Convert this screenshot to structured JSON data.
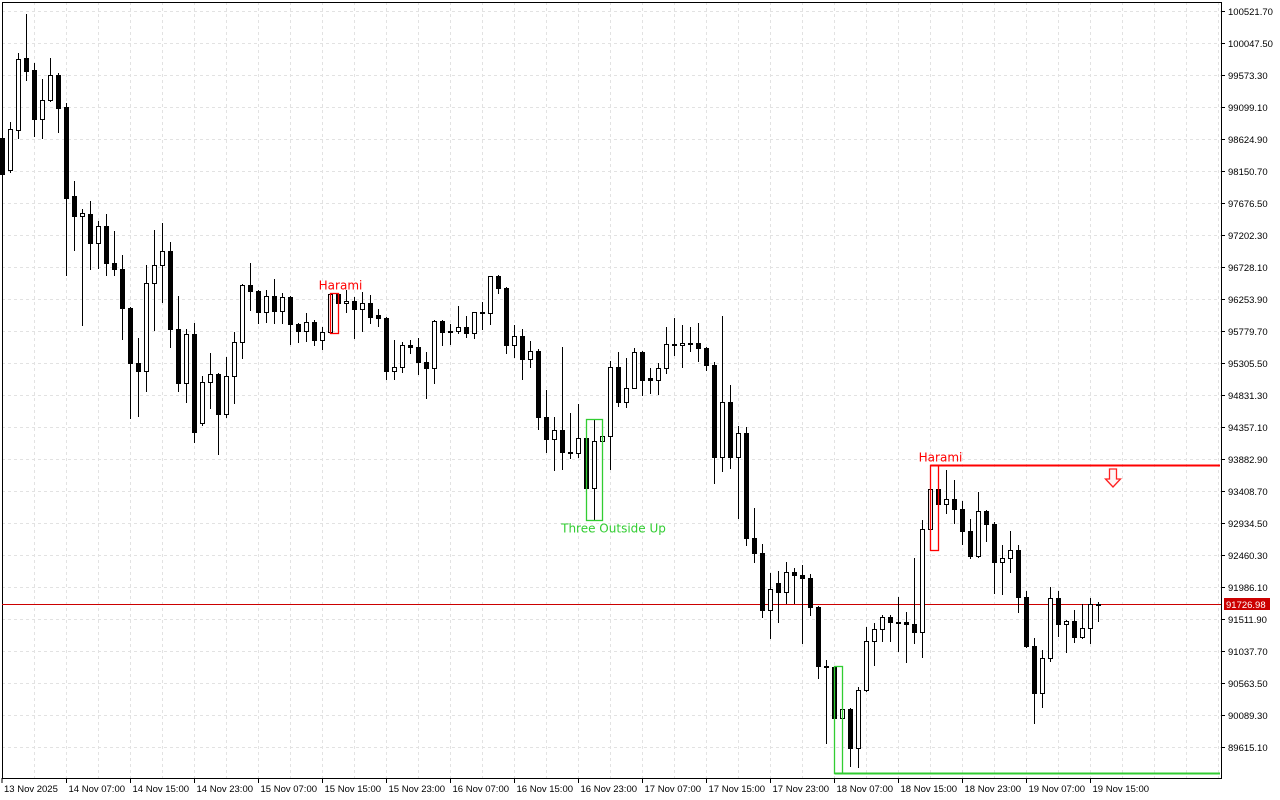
{
  "chart_data": {
    "type": "candlestick",
    "title": "",
    "xlabel": "",
    "ylabel": "",
    "ylim": [
      89155.5,
      100655.1
    ],
    "grid": true,
    "colors": {
      "bull_body": "#ffffff",
      "bear_body": "#000000",
      "outline": "#000000",
      "grid": "#e2e2e2",
      "current_price": "#cc0000"
    },
    "y_ticks": [
      "100521.70",
      "100047.50",
      "99573.30",
      "99099.10",
      "98624.90",
      "98150.70",
      "97676.50",
      "97202.30",
      "96728.10",
      "96253.90",
      "95779.70",
      "95305.50",
      "94831.30",
      "94357.10",
      "93882.90",
      "93408.70",
      "92934.50",
      "92460.30",
      "91986.10",
      "91511.90",
      "91037.70",
      "90563.50",
      "90089.30",
      "89615.10"
    ],
    "x_ticks": [
      "13 Nov 2025",
      "14 Nov 07:00",
      "14 Nov 15:00",
      "14 Nov 23:00",
      "15 Nov 07:00",
      "15 Nov 15:00",
      "15 Nov 23:00",
      "16 Nov 07:00",
      "16 Nov 15:00",
      "16 Nov 23:00",
      "17 Nov 07:00",
      "17 Nov 15:00",
      "17 Nov 23:00",
      "18 Nov 07:00",
      "18 Nov 15:00",
      "18 Nov 23:00",
      "19 Nov 07:00",
      "19 Nov 15:00"
    ],
    "current_price": {
      "value": 91726.98,
      "label": "91726.98"
    },
    "ohlc": [
      [
        98640,
        98700,
        98077,
        98106
      ],
      [
        98166,
        98877,
        98136,
        98773
      ],
      [
        98758,
        99899,
        98640,
        99811
      ],
      [
        99825,
        100477,
        99499,
        99633
      ],
      [
        99648,
        99751,
        98669,
        98921
      ],
      [
        98921,
        99514,
        98640,
        99203
      ],
      [
        99203,
        99825,
        99190,
        99573
      ],
      [
        99573,
        99603,
        98729,
        99084
      ],
      [
        99099,
        99158,
        96609,
        97750
      ],
      [
        97780,
        98003,
        96980,
        97484
      ],
      [
        97484,
        97588,
        95868,
        97528
      ],
      [
        97514,
        97706,
        96698,
        97084
      ],
      [
        97084,
        97410,
        96713,
        97335
      ],
      [
        97335,
        97514,
        96609,
        96787
      ],
      [
        96787,
        97261,
        96609,
        96698
      ],
      [
        96698,
        96906,
        95661,
        96120
      ],
      [
        96120,
        96135,
        94490,
        95305
      ],
      [
        95305,
        95676,
        94520,
        95187
      ],
      [
        95187,
        96757,
        94890,
        96491
      ],
      [
        96491,
        97276,
        95794,
        96757
      ],
      [
        96757,
        97380,
        96209,
        96965
      ],
      [
        96965,
        97099,
        95542,
        95809
      ],
      [
        95809,
        96298,
        94890,
        95009
      ],
      [
        95009,
        95809,
        94727,
        95735
      ],
      [
        95735,
        95898,
        94134,
        94283
      ],
      [
        94416,
        95113,
        94380,
        95024
      ],
      [
        95024,
        95453,
        94638,
        95142
      ],
      [
        95142,
        95160,
        93956,
        94549
      ],
      [
        94549,
        95394,
        94505,
        95113
      ],
      [
        95113,
        95764,
        94712,
        95616
      ],
      [
        95616,
        96476,
        95379,
        96461
      ],
      [
        96461,
        96787,
        96091,
        96372
      ],
      [
        96372,
        96387,
        95898,
        96061
      ],
      [
        96061,
        96387,
        95913,
        96298
      ],
      [
        96298,
        96550,
        95898,
        96076
      ],
      [
        96076,
        96343,
        95898,
        96283
      ],
      [
        96283,
        96298,
        95587,
        95883
      ],
      [
        95883,
        95898,
        95616,
        95780
      ],
      [
        95780,
        96046,
        95631,
        95913
      ],
      [
        95913,
        95943,
        95572,
        95646
      ],
      [
        95646,
        95839,
        95513,
        95764
      ],
      [
        95764,
        96343,
        95750,
        96328
      ],
      [
        96328,
        96340,
        96061,
        96194
      ],
      [
        96194,
        96387,
        96061,
        96224
      ],
      [
        96224,
        96283,
        95676,
        96105
      ],
      [
        96105,
        96357,
        95780,
        96194
      ],
      [
        96194,
        96313,
        95898,
        95987
      ],
      [
        96016,
        96105,
        95853,
        95972
      ],
      [
        95972,
        95990,
        95068,
        95187
      ],
      [
        95187,
        95646,
        95068,
        95246
      ],
      [
        95246,
        95616,
        95172,
        95572
      ],
      [
        95572,
        95646,
        95453,
        95542
      ],
      [
        95542,
        95676,
        95142,
        95320
      ],
      [
        95320,
        95468,
        94787,
        95231
      ],
      [
        95231,
        95943,
        95009,
        95928
      ],
      [
        95928,
        95943,
        95572,
        95764
      ],
      [
        95764,
        95883,
        95587,
        95780
      ],
      [
        95780,
        96150,
        95750,
        95839
      ],
      [
        95839,
        96002,
        95690,
        95750
      ],
      [
        95750,
        96061,
        95676,
        96061
      ],
      [
        96061,
        96209,
        95809,
        96046
      ],
      [
        96046,
        96594,
        95883,
        96594
      ],
      [
        96594,
        96610,
        96343,
        96417
      ],
      [
        96417,
        96430,
        95453,
        95572
      ],
      [
        95572,
        95868,
        95394,
        95705
      ],
      [
        95705,
        95809,
        95068,
        95364
      ],
      [
        95364,
        95631,
        95246,
        95483
      ],
      [
        95483,
        95513,
        94327,
        94505
      ],
      [
        94505,
        94905,
        93986,
        94179
      ],
      [
        94179,
        94505,
        93719,
        94312
      ],
      [
        94312,
        95542,
        93734,
        93986
      ],
      [
        93986,
        94564,
        93897,
        93971
      ],
      [
        93971,
        94697,
        93912,
        94194
      ],
      [
        94194,
        94210,
        93304,
        93453
      ],
      [
        93453,
        94475,
        92979,
        94149
      ],
      [
        94149,
        94240,
        94130,
        94224
      ],
      [
        94224,
        95335,
        93734,
        95246
      ],
      [
        95246,
        95468,
        94668,
        94727
      ],
      [
        94727,
        95379,
        94653,
        94935
      ],
      [
        94935,
        95528,
        94935,
        95468
      ],
      [
        95468,
        95480,
        94831,
        95053
      ],
      [
        95083,
        95231,
        94861,
        95053
      ],
      [
        95053,
        95305,
        94846,
        95231
      ],
      [
        95231,
        95839,
        95157,
        95587
      ],
      [
        95587,
        95972,
        95424,
        95572
      ],
      [
        95572,
        95868,
        95246,
        95602
      ],
      [
        95602,
        95839,
        95483,
        95602
      ],
      [
        95602,
        95898,
        95335,
        95528
      ],
      [
        95528,
        95540,
        95201,
        95275
      ],
      [
        95275,
        95320,
        93527,
        93912
      ],
      [
        93912,
        96002,
        93705,
        94727
      ],
      [
        94727,
        94979,
        93749,
        93912
      ],
      [
        93912,
        94372,
        93008,
        94268
      ],
      [
        94268,
        94357,
        92608,
        92712
      ],
      [
        92712,
        93156,
        92356,
        92489
      ],
      [
        92489,
        92623,
        91541,
        91645
      ],
      [
        91645,
        92193,
        91230,
        91956
      ],
      [
        92045,
        92223,
        91467,
        91911
      ],
      [
        91911,
        92356,
        91748,
        92208
      ],
      [
        92208,
        92267,
        91748,
        92164
      ],
      [
        92164,
        92312,
        91155,
        92119
      ],
      [
        92119,
        92179,
        91570,
        91689
      ],
      [
        91689,
        91700,
        90637,
        90815
      ],
      [
        90815,
        90903,
        89674,
        90800
      ],
      [
        90800,
        90815,
        89229,
        90044
      ],
      [
        90044,
        90459,
        89674,
        90178
      ],
      [
        90178,
        90193,
        89333,
        89600
      ],
      [
        89600,
        90504,
        89318,
        90459
      ],
      [
        90459,
        91393,
        90440,
        91185
      ],
      [
        91185,
        91452,
        90829,
        91363
      ],
      [
        91363,
        91570,
        91185,
        91541
      ],
      [
        91541,
        91570,
        91185,
        91467
      ],
      [
        91467,
        91837,
        91037,
        91460
      ],
      [
        91460,
        91615,
        90874,
        91437
      ],
      [
        91437,
        92415,
        91155,
        91318
      ],
      [
        91318,
        92979,
        90948,
        92845
      ],
      [
        92845,
        93793,
        92534,
        93438
      ],
      [
        93438,
        93601,
        93127,
        93215
      ],
      [
        93215,
        93719,
        93082,
        93290
      ],
      [
        93290,
        93571,
        92934,
        93142
      ],
      [
        93142,
        93260,
        92623,
        92816
      ],
      [
        92816,
        92993,
        92415,
        92445
      ],
      [
        92445,
        93394,
        92430,
        93112
      ],
      [
        93112,
        93127,
        92667,
        92919
      ],
      [
        92919,
        92949,
        91896,
        92356
      ],
      [
        92356,
        92608,
        91881,
        92415
      ],
      [
        92415,
        92816,
        92208,
        92534
      ],
      [
        92534,
        92608,
        91615,
        91837
      ],
      [
        91837,
        91926,
        91096,
        91111
      ],
      [
        91111,
        91230,
        89970,
        90414
      ],
      [
        90414,
        91052,
        90207,
        90933
      ],
      [
        90933,
        91985,
        90889,
        91822
      ],
      [
        91822,
        91926,
        91259,
        91437
      ],
      [
        91437,
        91500,
        91022,
        91482
      ],
      [
        91482,
        91645,
        91170,
        91244
      ],
      [
        91244,
        91734,
        91230,
        91378
      ],
      [
        91378,
        91822,
        91155,
        91727
      ],
      [
        91727,
        91763,
        91482,
        91727
      ]
    ],
    "annotations": [
      {
        "label": "Harami",
        "color": "#ff0000",
        "from": 41,
        "to": 42,
        "label_position": "above"
      },
      {
        "label": "Three Outside Up",
        "color": "#32cd32",
        "from": 73,
        "to": 75,
        "label_position": "below"
      },
      {
        "label": "Harami",
        "color": "#ff0000",
        "from": 116,
        "to": 117,
        "label_position": "above",
        "level": 93793,
        "signal": "down-arrow-icon"
      },
      {
        "label": "",
        "color": "#32cd32",
        "from": 104,
        "to": 105,
        "label_position": "none",
        "level": 89229
      }
    ]
  }
}
